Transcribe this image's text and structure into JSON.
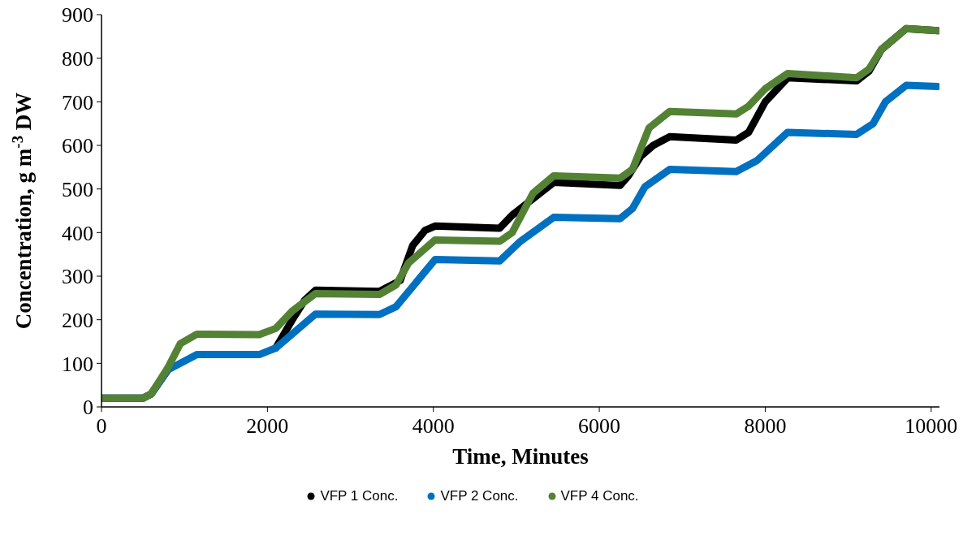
{
  "chart_data": {
    "type": "line",
    "xlabel": "Time, Minutes",
    "ylabel": "Concentration, g m$^{-3}$ DW",
    "xlim": [
      0,
      10100
    ],
    "xticks": [
      0,
      2000,
      4000,
      6000,
      8000,
      10000
    ],
    "ylim": [
      0,
      900
    ],
    "yticks": [
      0,
      100,
      200,
      300,
      400,
      500,
      600,
      700,
      800,
      900
    ],
    "grid": false,
    "legend": "bottom",
    "marker": "none",
    "line_style": "solid",
    "series": [
      {
        "name": "VFP 1 Conc.",
        "color": "#000000",
        "x": [
          0,
          500,
          600,
          800,
          1150,
          1900,
          2100,
          2300,
          2450,
          2580,
          3350,
          3600,
          3750,
          3900,
          4020,
          4800,
          4950,
          5150,
          5450,
          6250,
          6350,
          6500,
          6650,
          6850,
          7650,
          7800,
          8000,
          8270,
          9100,
          9250,
          9400,
          9700,
          10080
        ],
        "values": [
          20,
          20,
          30,
          85,
          null,
          null,
          135,
          200,
          245,
          268,
          265,
          290,
          370,
          405,
          415,
          410,
          440,
          470,
          515,
          508,
          530,
          575,
          600,
          620,
          612,
          630,
          700,
          755,
          748,
          770,
          820,
          868,
          863
        ]
      },
      {
        "name": "VFP 2 Conc.",
        "color": "#0070c0",
        "x": [
          0,
          500,
          600,
          800,
          1150,
          1900,
          2100,
          2580,
          3350,
          3550,
          4020,
          4800,
          5050,
          5450,
          6250,
          6400,
          6550,
          6850,
          7650,
          7900,
          8270,
          9100,
          9300,
          9450,
          9700,
          10080
        ],
        "values": [
          20,
          20,
          30,
          85,
          120,
          120,
          135,
          213,
          212,
          230,
          338,
          335,
          380,
          435,
          432,
          455,
          505,
          545,
          540,
          565,
          630,
          625,
          650,
          700,
          738,
          735
        ]
      },
      {
        "name": "VFP 4 Conc.",
        "color": "#548235",
        "x": [
          0,
          500,
          600,
          800,
          950,
          1150,
          1900,
          2100,
          2300,
          2580,
          3350,
          3550,
          3700,
          4020,
          4800,
          4950,
          5200,
          5450,
          6250,
          6400,
          6600,
          6850,
          7650,
          7800,
          8000,
          8270,
          9100,
          9250,
          9400,
          9700,
          10080
        ],
        "values": [
          20,
          20,
          30,
          90,
          145,
          167,
          166,
          180,
          220,
          260,
          258,
          280,
          330,
          383,
          380,
          400,
          490,
          530,
          525,
          545,
          640,
          678,
          672,
          690,
          730,
          765,
          755,
          775,
          820,
          868,
          863
        ]
      }
    ]
  }
}
